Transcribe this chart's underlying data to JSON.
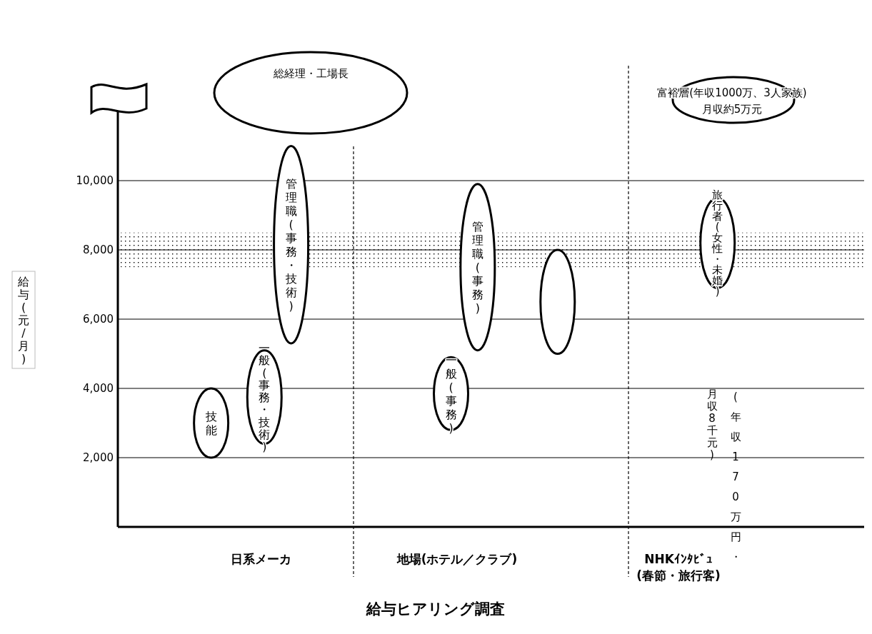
{
  "chart_data": {
    "type": "bar",
    "xlabel": "給与ヒアリング調査",
    "ylabel": "給与(元/月)",
    "categories": [
      null,
      null,
      null,
      null,
      null,
      null,
      null,
      null,
      null,
      null,
      null,
      null,
      null,
      null,
      null,
      null,
      null,
      null,
      null,
      null,
      null,
      null,
      null,
      null,
      null,
      null,
      null,
      null
    ],
    "color": "#ffffff",
    "base": [
      null,
      null,
      null,
      2000,
      null,
      2400,
      5300,
      null,
      null,
      null,
      null,
      null,
      2800,
      5100,
      null,
      null,
      5000,
      null,
      null,
      null,
      null,
      null,
      6900,
      null,
      null,
      null,
      null,
      null
    ],
    "values": [
      null,
      null,
      null,
      2000,
      null,
      2700,
      5700,
      null,
      null,
      null,
      null,
      null,
      2100,
      4800,
      null,
      null,
      3000,
      null,
      null,
      null,
      null,
      null,
      2600,
      null,
      null,
      null,
      null,
      null
    ],
    "value_labels": [
      null,
      null,
      null,
      "技能",
      null,
      "一般(事務・技術)",
      "管理職(事務・技術)",
      null,
      null,
      null,
      null,
      null,
      "一般(事務)",
      "管理職(事務)",
      null,
      null,
      null,
      null,
      null,
      null,
      null,
      null,
      "旅行者(女性・未婚)",
      null,
      null,
      null,
      null,
      null
    ],
    "ylim": [
      0,
      12000
    ],
    "yticks": [
      {
        "value": 2000,
        "label": "2,000"
      },
      {
        "value": 4000,
        "label": "4,000"
      },
      {
        "value": 6000,
        "label": "6,000"
      },
      {
        "value": 8000,
        "label": "8,000"
      },
      {
        "value": 10000,
        "label": "10,000"
      }
    ],
    "grid": "y",
    "bands": [
      {
        "axis": "y",
        "from": 7500,
        "to": 8500
      }
    ],
    "annotations": [
      "日系メーカ",
      "地場(ホテル／クラブ)",
      "NHKｲﾝﾀﾋﾞｭ",
      "(春節・旅行客)",
      "総経理・工場長",
      "富裕層(年収1000万、3人家族)",
      "月収約5万元",
      "(年収170万円・",
      "月収8千元)"
    ]
  }
}
